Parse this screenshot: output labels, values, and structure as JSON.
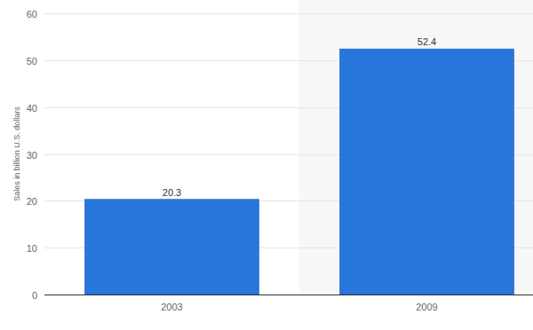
{
  "chart_data": {
    "type": "bar",
    "ylabel": "Sales in billion U.S. dollars",
    "categories": [
      "2003",
      "2009"
    ],
    "values": [
      20.3,
      52.4
    ],
    "color": "#2776dc",
    "ylim": [
      0,
      60
    ],
    "yticks": [
      0,
      10,
      20,
      30,
      40,
      50,
      60
    ],
    "grid": true,
    "data_labels": true
  }
}
